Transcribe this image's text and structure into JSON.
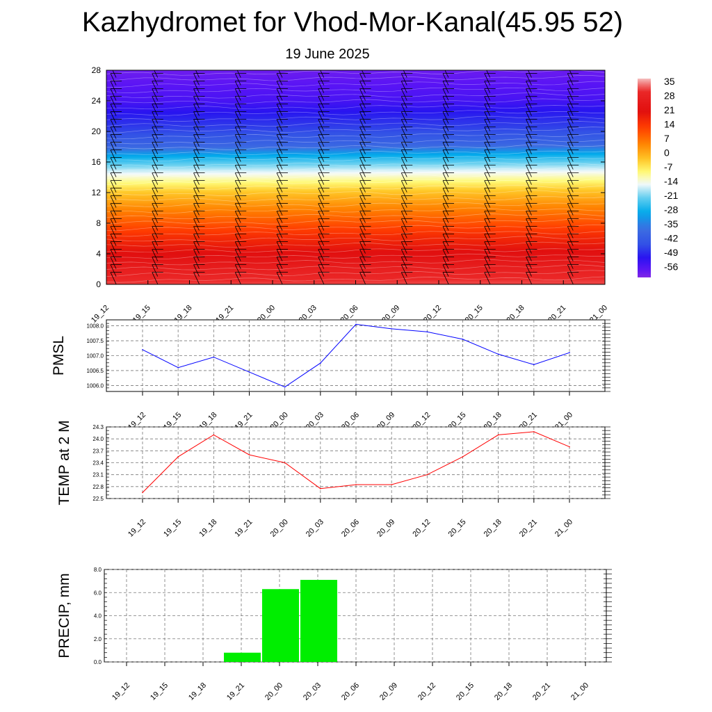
{
  "page": {
    "title": "Kazhydromet for Vhod-Mor-Kanal(45.95 52)",
    "subtitle": "19 June 2025"
  },
  "colors": {
    "pmsl_line": "#0000ff",
    "temp_line": "#ff0000",
    "precip_bar": "#00ee00",
    "grid": "#777777"
  },
  "chart_data": [
    {
      "type": "heatmap",
      "x_ticks": [
        "19_12",
        "19_15",
        "19_18",
        "19_21",
        "20_00",
        "20_03",
        "20_06",
        "20_09",
        "20_12",
        "20_15",
        "20_18",
        "20_21",
        "21_00"
      ],
      "y_ticks": [
        0,
        4,
        8,
        12,
        16,
        20,
        24,
        28
      ],
      "ylim": [
        0,
        28
      ],
      "colorbar_labels": [
        35,
        28,
        21,
        14,
        7,
        0,
        -7,
        -14,
        -21,
        -28,
        -35,
        -42,
        -49,
        -56
      ],
      "colorbar_range": [
        -60,
        38
      ],
      "level_profile": {
        "levels": [
          0,
          2,
          4,
          6,
          8,
          10,
          12,
          13,
          14,
          15,
          16,
          17,
          18,
          20,
          22,
          24,
          26,
          28
        ],
        "values": [
          33,
          28,
          22,
          17,
          11,
          5,
          -2,
          -7,
          -12,
          -17,
          -23,
          -30,
          -38,
          -45,
          -49,
          -54,
          -56,
          -58
        ]
      },
      "tropopause_level": 13.2,
      "legend": "right",
      "grid": false
    },
    {
      "type": "line",
      "ylabel": "PMSL",
      "x": [
        "19_12",
        "19_15",
        "19_18",
        "19_21",
        "20_00",
        "20_03",
        "20_06",
        "20_09",
        "20_12",
        "20_15",
        "20_18",
        "20_21",
        "21_00"
      ],
      "values": [
        1007.2,
        1006.6,
        1006.95,
        1006.45,
        1005.95,
        1006.75,
        1008.05,
        1007.9,
        1007.8,
        1007.55,
        1007.05,
        1006.7,
        1007.1
      ],
      "y_ticks": [
        "1006.0",
        "1006.5",
        "1007.0",
        "1007.5",
        "1008.0"
      ],
      "ylim": [
        1005.8,
        1008.2
      ],
      "grid": true
    },
    {
      "type": "line",
      "ylabel": "TEMP at 2 M",
      "x": [
        "19_12",
        "19_15",
        "19_18",
        "19_21",
        "20_00",
        "20_03",
        "20_06",
        "20_09",
        "20_12",
        "20_15",
        "20_18",
        "20_21",
        "21_00"
      ],
      "values": [
        22.65,
        23.55,
        24.1,
        23.6,
        23.4,
        22.75,
        22.85,
        22.85,
        23.1,
        23.55,
        24.1,
        24.18,
        23.8
      ],
      "y_ticks": [
        "22.5",
        "22.8",
        "23.1",
        "23.4",
        "23.7",
        "24.0",
        "24.3"
      ],
      "ylim": [
        22.5,
        24.3
      ],
      "grid": true
    },
    {
      "type": "bar",
      "ylabel": "PRECIP, mm",
      "x": [
        "19_12",
        "19_15",
        "19_18",
        "19_21",
        "20_00",
        "20_03",
        "20_06",
        "20_09",
        "20_12",
        "20_15",
        "20_18",
        "20_21",
        "21_00"
      ],
      "values": [
        0,
        0,
        0,
        0.8,
        6.3,
        7.1,
        0,
        0,
        0,
        0,
        0,
        0,
        0
      ],
      "y_ticks": [
        "0.0",
        "2.0",
        "4.0",
        "6.0",
        "8.0"
      ],
      "ylim": [
        0,
        8
      ],
      "grid": true
    }
  ]
}
